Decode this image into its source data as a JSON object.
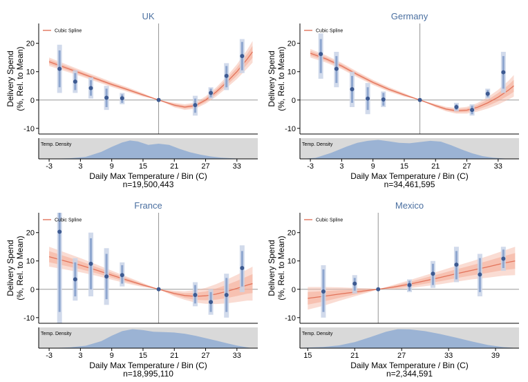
{
  "chart_data": [
    {
      "type": "scatter",
      "title": "UK",
      "ylabel_line1": "Delivery Spend",
      "ylabel_line2": "(%, Rel. to Mean)",
      "xlabel": "Daily Max Temperature / Bin (C)",
      "n_label": "n=19,500,443",
      "legend_label": "Cubic Spline",
      "density_label": "Temp. Density",
      "xlim": [
        -5,
        37
      ],
      "ylim": [
        -12,
        27
      ],
      "x_ticks": [
        -3,
        3,
        9,
        15,
        21,
        27,
        33
      ],
      "y_ticks": [
        -10,
        0,
        10,
        20
      ],
      "reference_x": 18,
      "points": [
        {
          "x": -1,
          "y": 11,
          "ci95": [
            2.5,
            19.5
          ],
          "ci90": [
            4.5,
            17.5
          ]
        },
        {
          "x": 2,
          "y": 6.5,
          "ci95": [
            2.5,
            10.5
          ],
          "ci90": [
            3.5,
            9.5
          ]
        },
        {
          "x": 5,
          "y": 4.2,
          "ci95": [
            0.5,
            8
          ],
          "ci90": [
            1.5,
            7
          ]
        },
        {
          "x": 8,
          "y": 0.8,
          "ci95": [
            -3.5,
            5
          ],
          "ci90": [
            -2.5,
            4
          ]
        },
        {
          "x": 11,
          "y": 0.6,
          "ci95": [
            -1.5,
            2.5
          ],
          "ci90": [
            -1,
            2
          ]
        },
        {
          "x": 18,
          "y": 0
        },
        {
          "x": 25,
          "y": -1.8,
          "ci95": [
            -5.5,
            1.5
          ],
          "ci90": [
            -4.5,
            0.5
          ]
        },
        {
          "x": 28,
          "y": 2.5,
          "ci95": [
            0.5,
            4.5
          ],
          "ci90": [
            1,
            4
          ]
        },
        {
          "x": 31,
          "y": 8.5,
          "ci95": [
            3.5,
            13
          ],
          "ci90": [
            4.5,
            12
          ]
        },
        {
          "x": 34,
          "y": 15.5,
          "ci95": [
            9.5,
            21.5
          ],
          "ci90": [
            10.5,
            20.5
          ]
        }
      ],
      "spline": {
        "x": [
          -3,
          0,
          3,
          6,
          9,
          12,
          15,
          18,
          21,
          23,
          25,
          27,
          29,
          31,
          33,
          35,
          36
        ],
        "y": [
          13.5,
          11.5,
          9.5,
          7.5,
          5.5,
          3.7,
          1.8,
          0,
          -1.8,
          -2.5,
          -2,
          0,
          2.8,
          6.2,
          10,
          14.5,
          17
        ],
        "band": [
          1.5,
          1.3,
          1.1,
          1,
          0.9,
          0.8,
          0.6,
          0,
          0.8,
          1,
          1.1,
          1.3,
          1.6,
          2,
          2.6,
          3.3,
          3.8
        ]
      },
      "density": {
        "x": [
          -4.5,
          -2,
          1,
          4,
          7,
          9,
          11,
          12.5,
          14,
          16,
          18,
          20,
          22,
          24,
          26,
          28,
          30,
          32,
          34,
          36
        ],
        "y": [
          0,
          0.01,
          0.03,
          0.1,
          0.35,
          0.6,
          0.82,
          0.92,
          0.87,
          0.7,
          0.76,
          0.7,
          0.5,
          0.33,
          0.21,
          0.12,
          0.06,
          0.03,
          0.01,
          0
        ]
      }
    },
    {
      "type": "scatter",
      "title": "Germany",
      "ylabel_line1": "Delivery Spend",
      "ylabel_line2": "(%, Rel. to Mean)",
      "xlabel": "Daily Max Temperature / Bin (C)",
      "n_label": "n=34,461,595",
      "legend_label": "Cubic Spline",
      "density_label": "Temp. Density",
      "xlim": [
        -5,
        37
      ],
      "ylim": [
        -12,
        27
      ],
      "x_ticks": [
        -3,
        3,
        9,
        15,
        21,
        27,
        33
      ],
      "y_ticks": [
        -10,
        0,
        10,
        20
      ],
      "reference_x": 18,
      "points": [
        {
          "x": -1,
          "y": 16.2,
          "ci95": [
            7.5,
            23.5
          ],
          "ci90": [
            9.5,
            21.5
          ]
        },
        {
          "x": 2,
          "y": 11,
          "ci95": [
            4.5,
            17
          ],
          "ci90": [
            6,
            15.5
          ]
        },
        {
          "x": 5,
          "y": 3.8,
          "ci95": [
            -2.5,
            10
          ],
          "ci90": [
            -1,
            8.5
          ]
        },
        {
          "x": 8,
          "y": 0.5,
          "ci95": [
            -5,
            6
          ],
          "ci90": [
            -3.5,
            4.5
          ]
        },
        {
          "x": 11,
          "y": 0.2,
          "ci95": [
            -2.5,
            3
          ],
          "ci90": [
            -2,
            2.5
          ]
        },
        {
          "x": 18,
          "y": 0
        },
        {
          "x": 25,
          "y": -2.5,
          "ci95": [
            -4,
            -1
          ],
          "ci90": [
            -3.5,
            -1.5
          ]
        },
        {
          "x": 28,
          "y": -3.5,
          "ci95": [
            -5.5,
            -1.5
          ],
          "ci90": [
            -5,
            -2
          ]
        },
        {
          "x": 31,
          "y": 2.2,
          "ci95": [
            0.5,
            4
          ],
          "ci90": [
            1,
            3.5
          ]
        },
        {
          "x": 34,
          "y": 9.8,
          "ci95": [
            2.5,
            17
          ],
          "ci90": [
            4,
            15.5
          ]
        }
      ],
      "spline": {
        "x": [
          -3,
          0,
          3,
          6,
          9,
          12,
          15,
          18,
          21,
          23,
          25,
          27,
          29,
          31,
          33,
          35,
          36
        ],
        "y": [
          16.5,
          14.5,
          12,
          9,
          6.2,
          3.8,
          1.8,
          0,
          -2,
          -3.2,
          -3.8,
          -3.6,
          -2.6,
          -1,
          1,
          3.5,
          5
        ],
        "band": [
          1.5,
          1.3,
          1.1,
          1,
          0.9,
          0.8,
          0.6,
          0,
          0.6,
          0.8,
          1,
          1.2,
          1.5,
          2,
          2.6,
          3.3,
          3.8
        ]
      },
      "density": {
        "x": [
          -4.5,
          -2,
          1,
          4,
          6,
          8,
          10,
          12,
          14,
          16,
          18,
          20,
          22,
          24,
          26,
          28,
          30,
          32,
          34,
          36
        ],
        "y": [
          0,
          0.05,
          0.3,
          0.62,
          0.8,
          0.9,
          0.95,
          0.88,
          0.8,
          0.78,
          0.84,
          0.9,
          0.86,
          0.68,
          0.47,
          0.28,
          0.14,
          0.06,
          0.02,
          0
        ]
      }
    },
    {
      "type": "scatter",
      "title": "France",
      "ylabel_line1": "Delivery Spend",
      "ylabel_line2": "(%, Rel. to Mean)",
      "xlabel": "Daily Max Temperature / Bin (C)",
      "n_label": "n=18,995,110",
      "legend_label": "Cubic Spline",
      "density_label": "Temp. Density",
      "xlim": [
        -5,
        37
      ],
      "ylim": [
        -12,
        27
      ],
      "x_ticks": [
        -3,
        3,
        9,
        15,
        21,
        27,
        33
      ],
      "y_ticks": [
        -10,
        0,
        10,
        20
      ],
      "reference_x": 18,
      "points": [
        {
          "x": -1,
          "y": 20.3,
          "ci95": [
            -12,
            27
          ],
          "ci90": [
            -8,
            27
          ]
        },
        {
          "x": 2,
          "y": 3.5,
          "ci95": [
            -4,
            11
          ],
          "ci90": [
            -2.5,
            9.5
          ]
        },
        {
          "x": 5,
          "y": 9,
          "ci95": [
            -2.5,
            20
          ],
          "ci90": [
            0,
            18
          ]
        },
        {
          "x": 8,
          "y": 4.5,
          "ci95": [
            -5.5,
            14.5
          ],
          "ci90": [
            -3.5,
            12.5
          ]
        },
        {
          "x": 11,
          "y": 5,
          "ci95": [
            1,
            9.5
          ],
          "ci90": [
            2,
            8.5
          ]
        },
        {
          "x": 18,
          "y": 0
        },
        {
          "x": 25,
          "y": -2,
          "ci95": [
            -6,
            2.5
          ],
          "ci90": [
            -5,
            1.5
          ]
        },
        {
          "x": 28,
          "y": -4.5,
          "ci95": [
            -9,
            0
          ],
          "ci90": [
            -8,
            -1
          ]
        },
        {
          "x": 31,
          "y": -2,
          "ci95": [
            -10,
            5.5
          ],
          "ci90": [
            -8,
            4
          ]
        },
        {
          "x": 34,
          "y": 7.5,
          "ci95": [
            -1,
            15.5
          ],
          "ci90": [
            1,
            13.5
          ]
        }
      ],
      "spline": {
        "x": [
          -3,
          0,
          3,
          6,
          9,
          12,
          15,
          18,
          21,
          23,
          25,
          27,
          29,
          31,
          33,
          35,
          36
        ],
        "y": [
          11.5,
          10,
          8.5,
          6.8,
          5,
          3.2,
          1.5,
          0,
          -1.5,
          -2.2,
          -2.5,
          -2.3,
          -1.7,
          -0.8,
          0.3,
          1.5,
          2
        ],
        "band": [
          3.5,
          3,
          2.5,
          2,
          1.6,
          1.2,
          0.7,
          0,
          1,
          1.5,
          2.2,
          2.8,
          3.5,
          4.2,
          4.8,
          5.5,
          6
        ]
      },
      "density": {
        "x": [
          -4.5,
          -2,
          1,
          4,
          7,
          9,
          11,
          13,
          15,
          17,
          19,
          21,
          23,
          25,
          27,
          29,
          31,
          33,
          35,
          36
        ],
        "y": [
          0,
          0.01,
          0.04,
          0.12,
          0.35,
          0.62,
          0.85,
          0.95,
          0.9,
          0.82,
          0.8,
          0.78,
          0.72,
          0.62,
          0.5,
          0.38,
          0.25,
          0.13,
          0.04,
          0
        ]
      }
    },
    {
      "type": "scatter",
      "title": "Mexico",
      "ylabel_line1": "Delivery Spend",
      "ylabel_line2": "(%, Rel. to Mean)",
      "xlabel": "Daily Max Temperature / Bin (C)",
      "n_label": "n=2,344,591",
      "legend_label": "Cubic Spline",
      "density_label": "Temp. Density",
      "xlim": [
        14,
        42
      ],
      "ylim": [
        -12,
        27
      ],
      "x_ticks": [
        15,
        21,
        27,
        33,
        39
      ],
      "y_ticks": [
        -10,
        0,
        10,
        20
      ],
      "reference_x": 24,
      "points": [
        {
          "x": 17,
          "y": -0.8,
          "ci95": [
            -10,
            8.5
          ],
          "ci90": [
            -8,
            7
          ]
        },
        {
          "x": 21,
          "y": 2,
          "ci95": [
            -1.5,
            5
          ],
          "ci90": [
            -0.5,
            4
          ]
        },
        {
          "x": 24,
          "y": 0
        },
        {
          "x": 28,
          "y": 1.5,
          "ci95": [
            -1,
            3.5
          ],
          "ci90": [
            -0.5,
            3
          ]
        },
        {
          "x": 31,
          "y": 5.5,
          "ci95": [
            0.5,
            10
          ],
          "ci90": [
            1.5,
            9
          ]
        },
        {
          "x": 34,
          "y": 8.7,
          "ci95": [
            2.5,
            15
          ],
          "ci90": [
            3.5,
            13.5
          ]
        },
        {
          "x": 37,
          "y": 5.2,
          "ci95": [
            -2.5,
            12.5
          ],
          "ci90": [
            -1,
            11
          ]
        },
        {
          "x": 40,
          "y": 10.8,
          "ci95": [
            6.5,
            15
          ],
          "ci90": [
            7.5,
            14
          ]
        }
      ],
      "spline": {
        "x": [
          15,
          17,
          19,
          21,
          23,
          24,
          26,
          28,
          30,
          32,
          34,
          36,
          38,
          40,
          41.5
        ],
        "y": [
          -3.2,
          -2.5,
          -1.7,
          -1,
          -0.3,
          0,
          0.8,
          1.8,
          3,
          4.2,
          5.5,
          6.7,
          7.9,
          9.2,
          10
        ],
        "band": [
          4,
          3.3,
          2.4,
          1.5,
          0.6,
          0,
          0.8,
          1.4,
          1.9,
          2.4,
          2.8,
          3.2,
          3.8,
          4.4,
          5
        ]
      },
      "density": {
        "x": [
          14.5,
          17,
          19,
          21,
          23,
          25,
          26.5,
          28,
          30,
          32,
          34,
          36,
          38,
          40,
          42
        ],
        "y": [
          0.02,
          0.06,
          0.14,
          0.3,
          0.55,
          0.82,
          0.95,
          0.94,
          0.85,
          0.7,
          0.52,
          0.33,
          0.16,
          0.05,
          0
        ]
      }
    }
  ]
}
